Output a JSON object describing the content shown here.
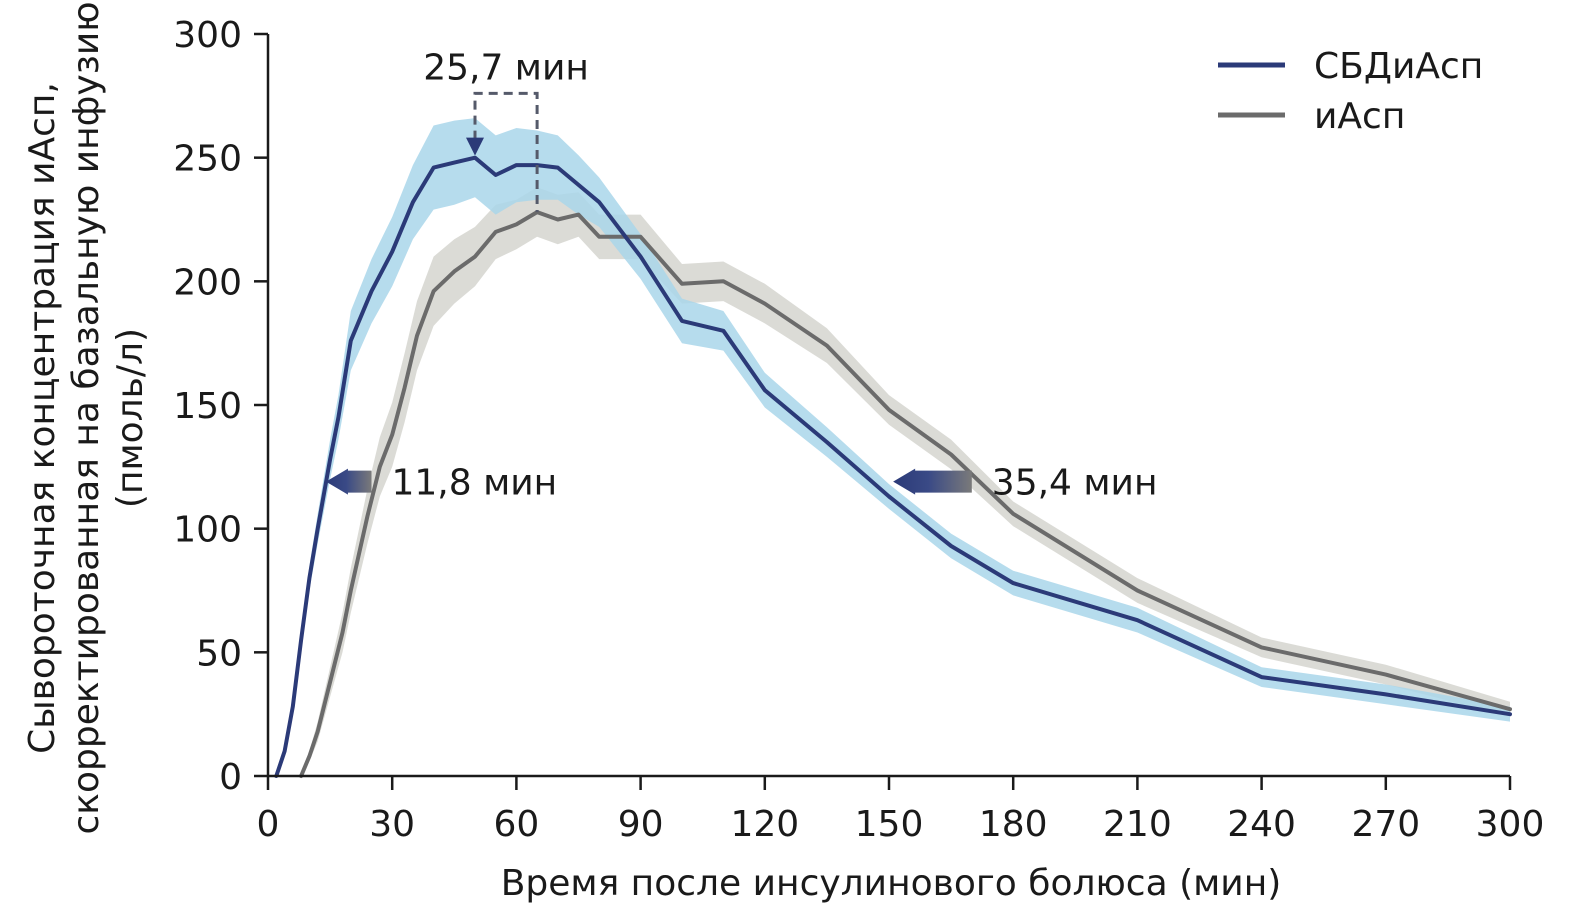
{
  "chart_data": {
    "type": "line",
    "title": "",
    "xlabel": "Время после инсулинового болюса (мин)",
    "ylabel": [
      "Сывороточная концентрация иАсп,",
      "скорректированная на базальную инфузию",
      "(пмоль/л)"
    ],
    "xlim": [
      0,
      300
    ],
    "ylim": [
      0,
      300
    ],
    "xticks": [
      0,
      30,
      60,
      90,
      120,
      150,
      180,
      210,
      240,
      270,
      300
    ],
    "yticks": [
      0,
      50,
      100,
      150,
      200,
      250,
      300
    ],
    "grid": false,
    "legend_position": "top-right",
    "series": [
      {
        "name": "СБДиАсп",
        "color": "#2b3a78",
        "band_color": "#a9d6ea",
        "x": [
          2,
          4,
          6,
          8,
          10,
          12,
          15,
          17,
          20,
          25,
          30,
          35,
          40,
          45,
          50,
          55,
          60,
          65,
          70,
          75,
          80,
          90,
          100,
          110,
          120,
          135,
          150,
          165,
          180,
          210,
          240,
          270,
          300
        ],
        "y": [
          0,
          10,
          28,
          55,
          80,
          100,
          128,
          145,
          176,
          196,
          212,
          232,
          246,
          248,
          250,
          243,
          247,
          247,
          246,
          239,
          232,
          210,
          184,
          180,
          156,
          135,
          113,
          93,
          78,
          63,
          40,
          33,
          25
        ],
        "band_halfwidth": [
          1,
          2,
          3,
          4,
          5,
          6,
          8,
          9,
          12,
          13,
          14,
          15,
          17,
          17,
          16,
          16,
          15,
          14,
          13,
          12,
          10,
          9,
          9,
          8,
          7,
          6,
          5,
          5,
          5,
          5,
          4,
          4,
          3
        ]
      },
      {
        "name": "иАсп",
        "color": "#6b6b6b",
        "band_color": "#d7d7d2",
        "x": [
          8,
          10,
          12,
          15,
          18,
          20,
          24,
          27,
          30,
          33,
          36,
          40,
          45,
          50,
          55,
          60,
          65,
          70,
          75,
          80,
          90,
          100,
          110,
          120,
          135,
          150,
          165,
          180,
          210,
          240,
          270,
          300
        ],
        "y": [
          0,
          8,
          18,
          38,
          58,
          75,
          105,
          125,
          138,
          157,
          178,
          196,
          204,
          210,
          220,
          223,
          228,
          225,
          227,
          218,
          218,
          199,
          200,
          191,
          174,
          148,
          130,
          106,
          75,
          52,
          41,
          27
        ],
        "band_halfwidth": [
          1,
          2,
          4,
          6,
          8,
          9,
          11,
          12,
          13,
          14,
          14,
          14,
          13,
          12,
          11,
          10,
          10,
          10,
          9,
          9,
          9,
          8,
          8,
          8,
          7,
          6,
          6,
          5,
          5,
          4,
          4,
          3
        ]
      }
    ],
    "annotations": [
      {
        "text": "25,7 мин",
        "type": "bracket",
        "x1": 50,
        "x2": 65,
        "y": 276,
        "from_y1": 250,
        "from_y2": 228
      },
      {
        "text": "11,8 мин",
        "type": "arrow",
        "x_from": 25,
        "x_to": 14,
        "y": 119
      },
      {
        "text": "35,4 мин",
        "type": "arrow",
        "x_from": 170,
        "x_to": 151,
        "y": 119
      }
    ]
  }
}
